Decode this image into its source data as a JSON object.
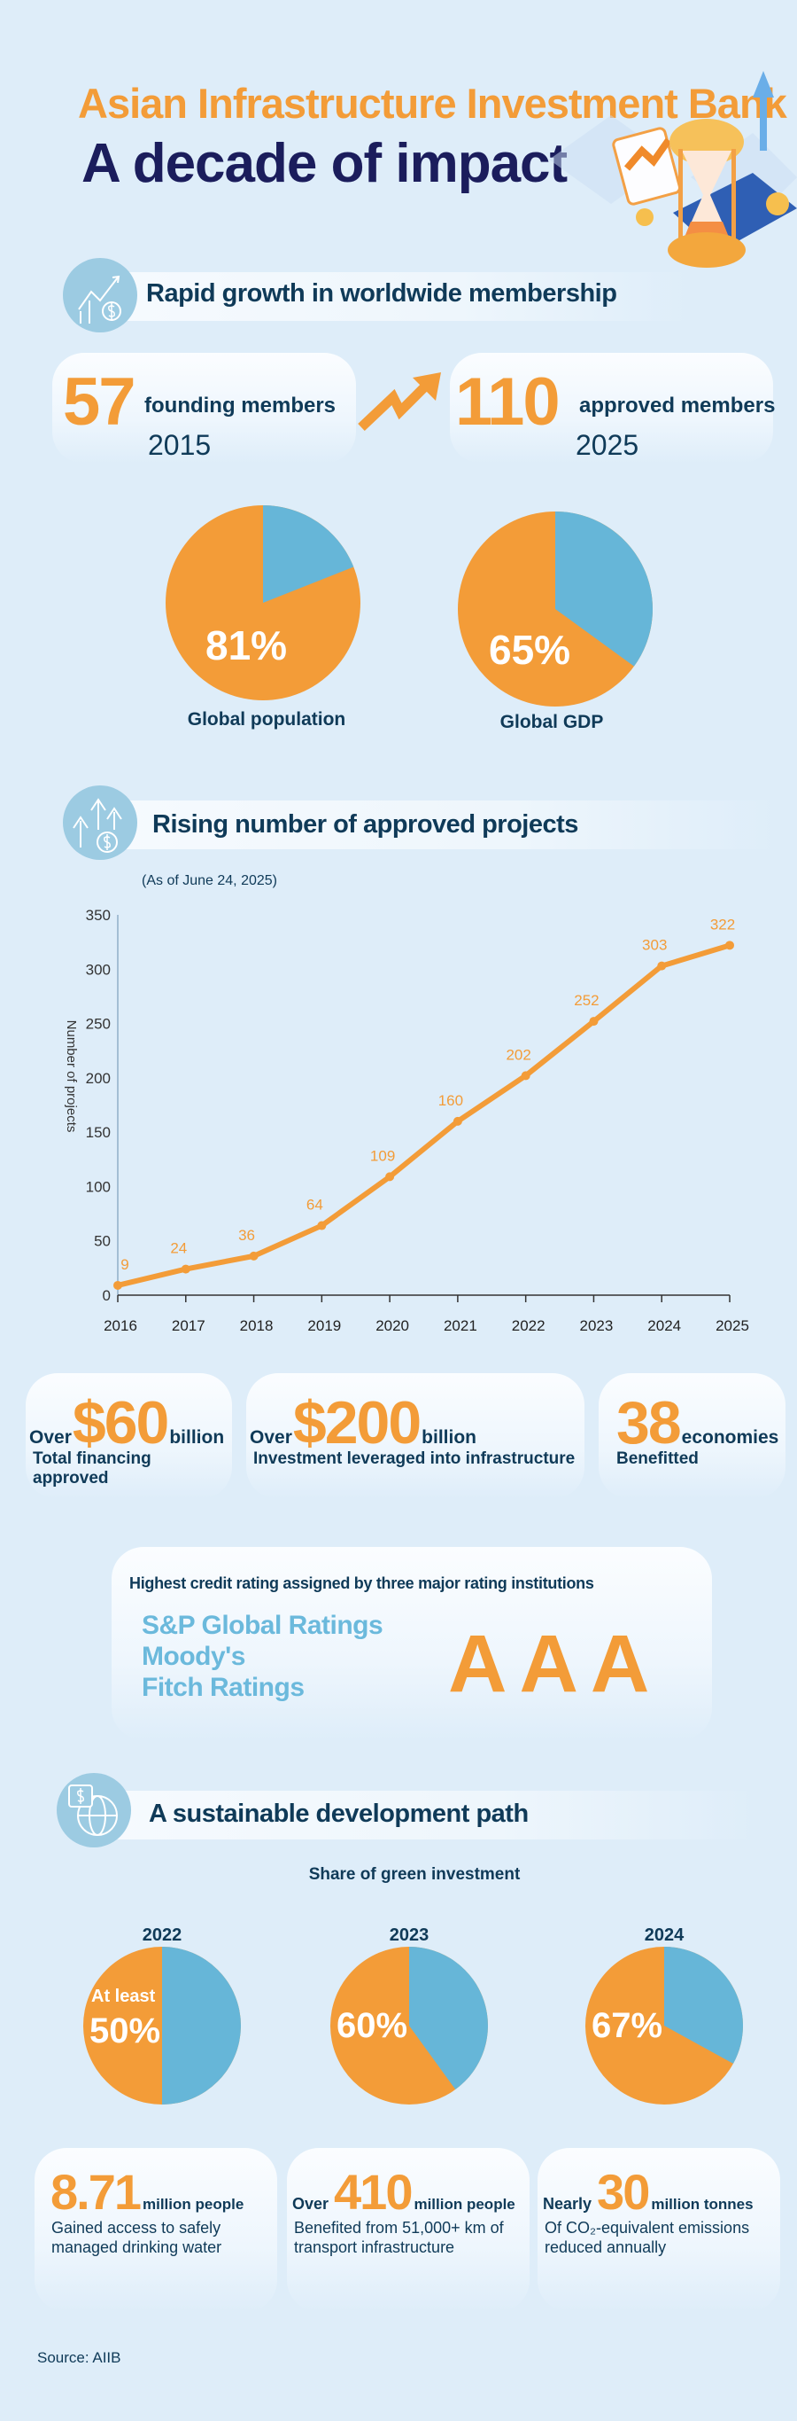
{
  "header": {
    "title": "Asian Infrastructure Investment Bank",
    "subtitle": "A decade of impact"
  },
  "colors": {
    "orange": "#f39c38",
    "blue": "#66b6d8",
    "navy": "#0f3a58",
    "background": "#deedf9"
  },
  "membership": {
    "section_title": "Rapid growth in worldwide membership",
    "section_icon": "growth-chart-dollar-gear-icon",
    "founding": {
      "number": "57",
      "label": "founding members",
      "year": "2015"
    },
    "approved": {
      "number": "110",
      "label": "approved members",
      "year": "2025"
    },
    "pies": [
      {
        "value": 81,
        "text": "81%",
        "label": "Global population"
      },
      {
        "value": 65,
        "text": "65%",
        "label": "Global GDP"
      }
    ]
  },
  "projects": {
    "section_title": "Rising number of approved projects",
    "section_icon": "arrows-up-dollar-icon",
    "note": "(As of June 24, 2025)"
  },
  "chart_data": {
    "type": "line",
    "x": [
      "2016",
      "2017",
      "2018",
      "2019",
      "2020",
      "2021",
      "2022",
      "2023",
      "2024",
      "2025"
    ],
    "values": [
      9,
      24,
      36,
      64,
      109,
      160,
      202,
      252,
      303,
      322
    ],
    "ylabel": "Number of projects",
    "xlabel": "",
    "ylim": [
      0,
      350
    ],
    "yticks": [
      "0",
      "50",
      "100",
      "150",
      "200",
      "250",
      "300",
      "350"
    ],
    "grid": false
  },
  "stats": [
    {
      "prefix": "Over",
      "number": "$60",
      "unit": "billion",
      "desc": "Total financing approved"
    },
    {
      "prefix": "Over",
      "number": "$200",
      "unit": "billion",
      "desc": "Investment leveraged into infrastructure"
    },
    {
      "prefix": "",
      "number": "38",
      "unit": "economies",
      "desc": "Benefitted"
    }
  ],
  "rating": {
    "heading": "Highest credit rating assigned by three major rating institutions",
    "agencies": [
      "S&P Global Ratings",
      "Moody's",
      "Fitch Ratings"
    ],
    "grade": "AAA"
  },
  "sustainable": {
    "section_title": "A sustainable development path",
    "section_icon": "globe-dollar-chat-icon",
    "chart_title": "Share of green investment",
    "pies": [
      {
        "year": "2022",
        "value": 50,
        "prefix": "At least",
        "text": "50%"
      },
      {
        "year": "2023",
        "value": 60,
        "prefix": "",
        "text": "60%"
      },
      {
        "year": "2024",
        "value": 67,
        "prefix": "",
        "text": "67%"
      }
    ],
    "impacts": [
      {
        "prefix": "",
        "number": "8.71",
        "unit": "million people",
        "desc1": "Gained access to safely",
        "desc2": "managed drinking water"
      },
      {
        "prefix": "Over",
        "number": "410",
        "unit": "million people",
        "desc1": "Benefited from 51,000+ km of",
        "desc2": "transport infrastructure"
      },
      {
        "prefix": "Nearly",
        "number": "30",
        "unit": "million tonnes",
        "desc1": "Of CO₂-equivalent emissions",
        "desc2": "reduced annually"
      }
    ]
  },
  "source": "Source: AIIB"
}
